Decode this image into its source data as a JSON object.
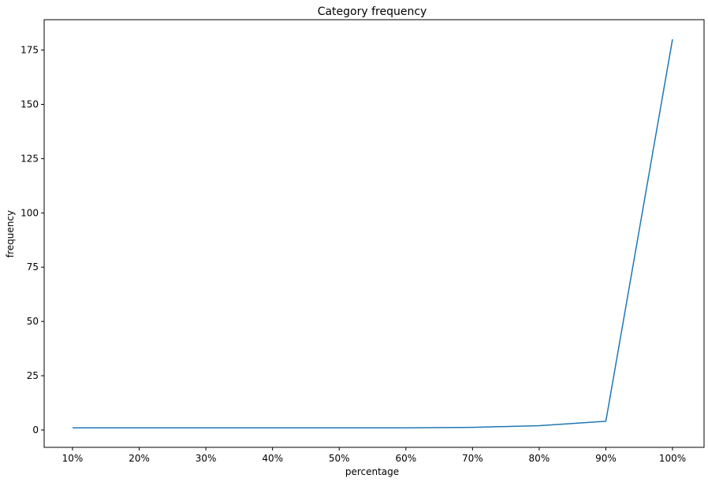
{
  "chart_data": {
    "type": "line",
    "title": "Category frequency",
    "xlabel": "percentage",
    "ylabel": "frequency",
    "categories": [
      "10%",
      "20%",
      "30%",
      "40%",
      "50%",
      "60%",
      "70%",
      "80%",
      "90%",
      "100%"
    ],
    "series": [
      {
        "color": "#1f77b4",
        "values": [
          1,
          1,
          1,
          1,
          1,
          1,
          1.2,
          2,
          4,
          180
        ]
      }
    ],
    "ylim": [
      -8,
      189
    ],
    "yticks": [
      0,
      25,
      50,
      75,
      100,
      125,
      150,
      175
    ],
    "grid": false,
    "legend": "none"
  }
}
